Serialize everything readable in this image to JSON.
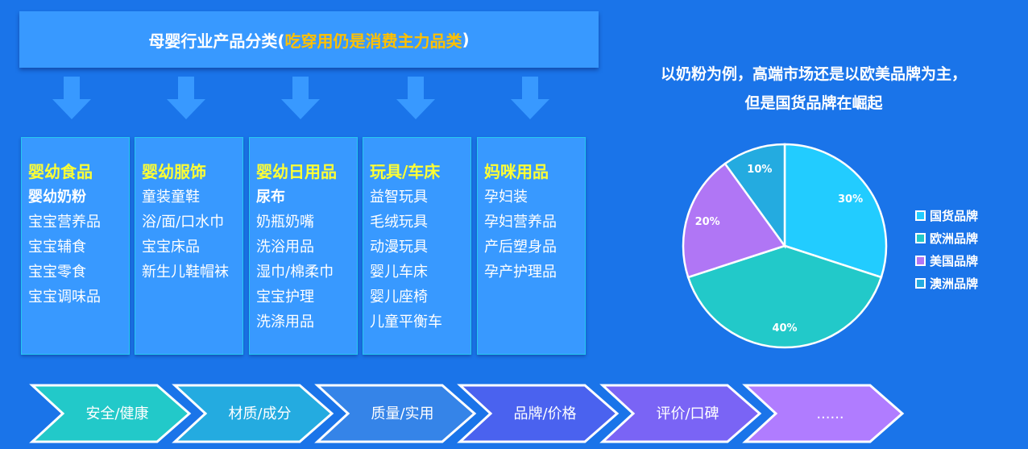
{
  "title": {
    "main": "母婴行业产品分类(",
    "highlight": "吃穿用仍是消费主力品类",
    "close": ")"
  },
  "columns": [
    {
      "heading": "婴幼食品",
      "items": [
        "婴幼奶粉",
        "宝宝营养品",
        "宝宝辅食",
        "宝宝零食",
        "宝宝调味品"
      ],
      "bold_first": true
    },
    {
      "heading": "婴幼服饰",
      "items": [
        "童装童鞋",
        "浴/面/口水巾",
        "宝宝床品",
        "新生儿鞋帽袜"
      ],
      "bold_first": false
    },
    {
      "heading": "婴幼日用品",
      "items": [
        "尿布",
        "奶瓶奶嘴",
        "洗浴用品",
        "湿巾/棉柔巾",
        "宝宝护理",
        "洗涤用品"
      ],
      "bold_first": true
    },
    {
      "heading": "玩具/车床",
      "items": [
        "益智玩具",
        "毛绒玩具",
        "动漫玩具",
        "婴儿车床",
        "婴儿座椅",
        "儿童平衡车"
      ],
      "bold_first": false
    },
    {
      "heading": "妈咪用品",
      "items": [
        "孕妇装",
        "孕妇营养品",
        "产后塑身品",
        "孕产护理品"
      ],
      "bold_first": false
    }
  ],
  "subtitle": [
    "以奶粉为例，高端市场还是以欧美品牌为主，",
    "但是国货品牌在崛起"
  ],
  "chart_data": {
    "type": "pie",
    "categories": [
      "国货品牌",
      "欧洲品牌",
      "美国品牌",
      "澳洲品牌"
    ],
    "values": [
      30,
      40,
      20,
      10
    ],
    "labels": [
      "30%",
      "40%",
      "20%",
      "10%"
    ],
    "colors": [
      "#22ccff",
      "#22c9c9",
      "#b076f5",
      "#24abe0"
    ],
    "legend": "right"
  },
  "factors": [
    {
      "label": "安全/健康",
      "color": "#22c9c9"
    },
    {
      "label": "材质/成分",
      "color": "#24abe0"
    },
    {
      "label": "质量/实用",
      "color": "#3584e8"
    },
    {
      "label": "品牌/价格",
      "color": "#4a62ef"
    },
    {
      "label": "评价/口碑",
      "color": "#7a64f5"
    },
    {
      "label": "......",
      "color": "#b07cff"
    }
  ]
}
